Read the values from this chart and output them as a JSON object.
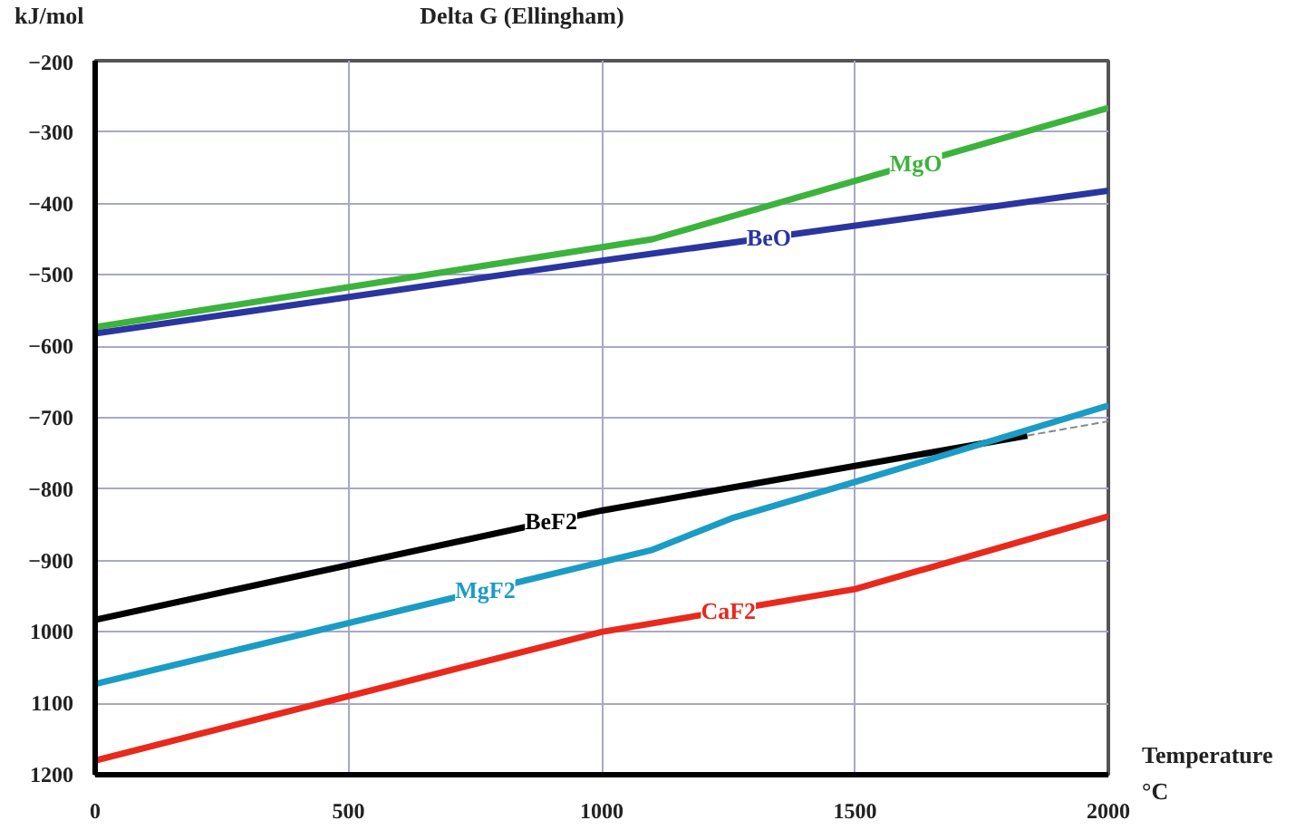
{
  "chart_data": {
    "type": "line",
    "title": "Delta G (Ellingham)",
    "xlabel": "Temperature",
    "ylabel": "kJ/mol",
    "xlim": [
      0,
      2000
    ],
    "ylim": [
      -1200,
      -200
    ],
    "xticks": [
      0,
      500,
      1000,
      1500,
      2000
    ],
    "yticks": [
      -200,
      -300,
      -400,
      -500,
      -600,
      -700,
      -800,
      -900,
      {
        "value": -1000,
        "label": "1000"
      },
      {
        "value": -1100,
        "label": "1100"
      },
      {
        "value": -1200,
        "label": "1200"
      }
    ],
    "grid": true,
    "line_style": "solid",
    "marker": "none",
    "series": [
      {
        "color": "#3cb33c",
        "x": [
          0,
          1100,
          2000
        ],
        "values": [
          -573,
          -450,
          -266
        ]
      },
      {
        "color": "#2b35a0",
        "x": [
          0,
          1000,
          2000
        ],
        "values": [
          -582,
          -480,
          -382
        ]
      },
      {
        "color": "#000000",
        "x": [
          0,
          1000,
          1840
        ],
        "values": [
          -983,
          -830,
          -725
        ]
      },
      {
        "color": "#1a9cc4",
        "x": [
          0,
          1100,
          1260,
          1500,
          2000
        ],
        "values": [
          -1073,
          -885,
          -840,
          -790,
          -683
        ]
      },
      {
        "color": "#e8291c",
        "x": [
          0,
          1000,
          1500,
          2000
        ],
        "values": [
          -1180,
          -1000,
          -940,
          -838
        ]
      },
      {
        "color": "#888888",
        "line_style": "dashed",
        "x": [
          1840,
          2000
        ],
        "values": [
          -725,
          -705
        ]
      }
    ],
    "annotations": [
      {
        "text": "MgO",
        "x": 1620,
        "y": -344
      },
      {
        "text": "BeO",
        "x": 1330,
        "y": -448
      },
      {
        "text": "BeF2",
        "x": 900,
        "y": -845
      },
      {
        "text": "MgF2",
        "x": 770,
        "y": -941
      },
      {
        "text": "CaF2",
        "x": 1250,
        "y": -970
      },
      "°C"
    ]
  }
}
